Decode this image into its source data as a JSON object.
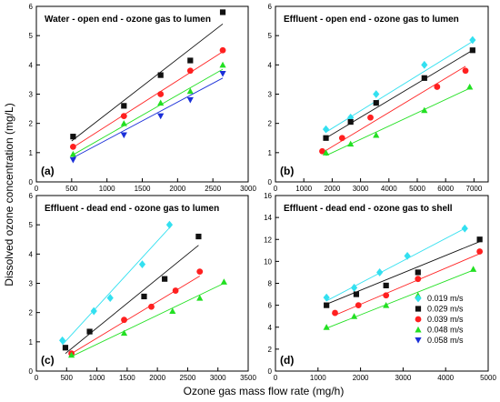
{
  "chart_data": {
    "type": "scatter",
    "xlabel": "Ozone gas mass flow rate (mg/h)",
    "ylabel": "Dissolved ozone concentration (mg/L)",
    "legend": {
      "placement": "bottom-right of panel (d)",
      "entries": [
        {
          "name": "0.019 m/s",
          "color": "#33e0f0",
          "marker": "diamond"
        },
        {
          "name": "0.029 m/s",
          "color": "#111111",
          "marker": "square"
        },
        {
          "name": "0.039 m/s",
          "color": "#ff2020",
          "marker": "circle"
        },
        {
          "name": "0.048 m/s",
          "color": "#22e022",
          "marker": "triangle-up"
        },
        {
          "name": "0.058 m/s",
          "color": "#1a2fd8",
          "marker": "triangle-down"
        }
      ]
    },
    "panels": [
      {
        "label": "(a)",
        "title": "Water - open end - ozone gas to lumen",
        "xlim": [
          0,
          3000
        ],
        "ylim": [
          0,
          6
        ],
        "xticks": [
          0,
          500,
          1000,
          1500,
          2000,
          2500,
          3000
        ],
        "yticks": [
          0,
          1,
          2,
          3,
          4,
          5,
          6
        ],
        "series": [
          {
            "key": 1,
            "x": [
              520,
              1240,
              1760,
              2180,
              2640
            ],
            "y": [
              1.55,
              2.6,
              3.65,
              4.15,
              5.8
            ],
            "fit": [
              [
                500,
                1.4
              ],
              [
                2640,
                5.4
              ]
            ]
          },
          {
            "key": 2,
            "x": [
              520,
              1240,
              1760,
              2180,
              2640
            ],
            "y": [
              1.2,
              2.25,
              3.0,
              3.8,
              4.5
            ],
            "fit": [
              [
                500,
                1.15
              ],
              [
                2640,
                4.45
              ]
            ]
          },
          {
            "key": 3,
            "x": [
              520,
              1240,
              1760,
              2180,
              2640
            ],
            "y": [
              0.95,
              2.0,
              2.7,
              3.1,
              4.0
            ],
            "fit": [
              [
                500,
                0.9
              ],
              [
                2640,
                3.85
              ]
            ]
          },
          {
            "key": 4,
            "x": [
              520,
              1240,
              1760,
              2180,
              2640
            ],
            "y": [
              0.75,
              1.6,
              2.25,
              2.8,
              3.7
            ],
            "fit": [
              [
                500,
                0.8
              ],
              [
                2640,
                3.55
              ]
            ]
          }
        ]
      },
      {
        "label": "(b)",
        "title": "Effluent - open end - ozone gas to lumen",
        "xlim": [
          0,
          7500
        ],
        "ylim": [
          0,
          6
        ],
        "xticks": [
          0,
          1000,
          2000,
          3000,
          4000,
          5000,
          6000,
          7000
        ],
        "yticks": [
          0,
          1,
          2,
          3,
          4,
          5,
          6
        ],
        "series": [
          {
            "key": 0,
            "x": [
              1780,
              2650,
              3550,
              5250,
              6950
            ],
            "y": [
              1.8,
              2.2,
              3.0,
              4.0,
              4.85
            ],
            "fit": [
              [
                1780,
                1.7
              ],
              [
                6950,
                4.8
              ]
            ]
          },
          {
            "key": 1,
            "x": [
              1780,
              2650,
              3550,
              5250,
              6950
            ],
            "y": [
              1.5,
              2.05,
              2.7,
              3.55,
              4.5
            ],
            "fit": [
              [
                1780,
                1.5
              ],
              [
                6950,
                4.5
              ]
            ]
          },
          {
            "key": 2,
            "x": [
              1650,
              2350,
              3350,
              5700,
              6700
            ],
            "y": [
              1.05,
              1.5,
              2.2,
              3.25,
              3.8
            ],
            "fit": [
              [
                1650,
                1.0
              ],
              [
                6700,
                3.95
              ]
            ]
          },
          {
            "key": 3,
            "x": [
              1780,
              2650,
              3550,
              5250,
              6850
            ],
            "y": [
              1.0,
              1.3,
              1.6,
              2.45,
              3.25
            ],
            "fit": [
              [
                1780,
                0.9
              ],
              [
                6850,
                3.2
              ]
            ]
          }
        ]
      },
      {
        "label": "(c)",
        "title": "Effluent - dead end - ozone gas to lumen",
        "xlim": [
          0,
          3500
        ],
        "ylim": [
          0,
          6
        ],
        "xticks": [
          0,
          500,
          1000,
          1500,
          2000,
          2500,
          3000,
          3500
        ],
        "yticks": [
          0,
          1,
          2,
          3,
          4,
          5,
          6
        ],
        "series": [
          {
            "key": 0,
            "x": [
              430,
              950,
              1220,
              1750,
              2200
            ],
            "y": [
              1.05,
              2.05,
              2.5,
              3.65,
              5.0
            ],
            "fit": [
              [
                430,
                0.9
              ],
              [
                2200,
                4.9
              ]
            ]
          },
          {
            "key": 1,
            "x": [
              480,
              880,
              1780,
              2120,
              2680
            ],
            "y": [
              0.8,
              1.35,
              2.55,
              3.15,
              4.6
            ],
            "fit": [
              [
                480,
                0.6
              ],
              [
                2680,
                4.3
              ]
            ]
          },
          {
            "key": 2,
            "x": [
              580,
              1450,
              1900,
              2300,
              2700
            ],
            "y": [
              0.6,
              1.75,
              2.2,
              2.75,
              3.4
            ],
            "fit": [
              [
                580,
                0.6
              ],
              [
                2700,
                3.25
              ]
            ]
          },
          {
            "key": 3,
            "x": [
              580,
              1450,
              2250,
              2700,
              3100
            ],
            "y": [
              0.55,
              1.3,
              2.05,
              2.5,
              3.05
            ],
            "fit": [
              [
                580,
                0.5
              ],
              [
                3100,
                3.0
              ]
            ]
          }
        ]
      },
      {
        "label": "(d)",
        "title": "Effluent - dead end - ozone gas to shell",
        "xlim": [
          0,
          5000
        ],
        "ylim": [
          0,
          16
        ],
        "xticks": [
          0,
          1000,
          2000,
          3000,
          4000,
          5000
        ],
        "yticks": [
          0,
          2,
          4,
          6,
          8,
          10,
          12,
          14,
          16
        ],
        "series": [
          {
            "key": 0,
            "x": [
              1200,
              1850,
              2450,
              3100,
              4450
            ],
            "y": [
              6.7,
              7.6,
              9.0,
              10.5,
              13.0
            ],
            "fit": [
              [
                1200,
                6.4
              ],
              [
                4450,
                13.0
              ]
            ]
          },
          {
            "key": 1,
            "x": [
              1200,
              1900,
              2600,
              3350,
              4800
            ],
            "y": [
              6.0,
              7.0,
              7.8,
              9.0,
              12.0
            ],
            "fit": [
              [
                1200,
                6.1
              ],
              [
                4800,
                11.8
              ]
            ]
          },
          {
            "key": 2,
            "x": [
              1400,
              1950,
              2600,
              3350,
              4800
            ],
            "y": [
              5.3,
              6.0,
              6.9,
              8.4,
              10.9
            ],
            "fit": [
              [
                1400,
                5.1
              ],
              [
                4800,
                10.7
              ]
            ]
          },
          {
            "key": 3,
            "x": [
              1200,
              1850,
              2600,
              3350,
              4650
            ],
            "y": [
              4.0,
              5.0,
              6.0,
              6.9,
              9.3
            ],
            "fit": [
              [
                1200,
                3.9
              ],
              [
                4650,
                9.2
              ]
            ]
          }
        ]
      }
    ]
  }
}
